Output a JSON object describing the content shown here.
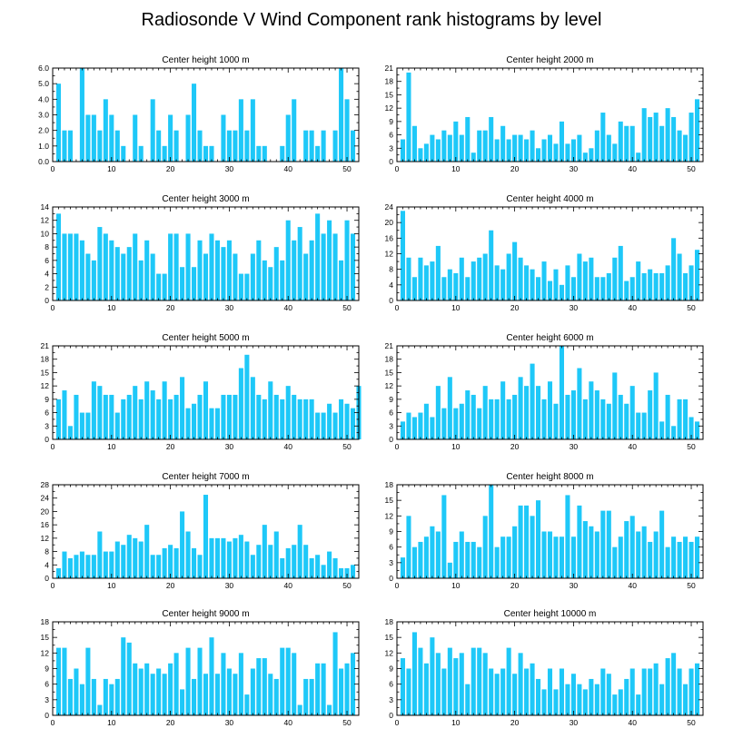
{
  "chart_data": {
    "title": "Radiosonde V Wind Component rank histograms by level",
    "type": "bar",
    "bar_color": "#1ec8f8",
    "x_range": [
      0,
      52
    ],
    "x_ticks": [
      0,
      10,
      20,
      30,
      40,
      50
    ],
    "panels": [
      {
        "title": "Center height 1000 m",
        "ylim": [
          0,
          6
        ],
        "yticks": [
          0,
          1,
          2,
          3,
          4,
          5,
          6
        ],
        "ytick_labels": [
          "0.0",
          "1.0",
          "2.0",
          "3.0",
          "4.0",
          "5.0",
          "6.0"
        ],
        "values": [
          5,
          2,
          2,
          0,
          6,
          3,
          3,
          2,
          4,
          3,
          2,
          1,
          0,
          3,
          1,
          0,
          4,
          2,
          1,
          3,
          2,
          0,
          3,
          5,
          2,
          1,
          1,
          0,
          3,
          2,
          2,
          4,
          2,
          4,
          1,
          1,
          0,
          0,
          1,
          3,
          4,
          0,
          2,
          2,
          1,
          2,
          0,
          2,
          6,
          4,
          2
        ]
      },
      {
        "title": "Center height 2000 m",
        "ylim": [
          0,
          21
        ],
        "yticks": [
          0,
          3,
          6,
          9,
          12,
          15,
          18,
          21
        ],
        "ytick_labels": [
          "0",
          "3",
          "6",
          "9",
          "12",
          "15",
          "18",
          "21"
        ],
        "values": [
          5,
          20,
          8,
          3,
          4,
          6,
          5,
          7,
          6,
          9,
          6,
          10,
          2,
          7,
          7,
          10,
          5,
          8,
          5,
          6,
          6,
          5,
          7,
          3,
          5,
          6,
          4,
          9,
          4,
          5,
          6,
          2,
          3,
          7,
          11,
          6,
          4,
          9,
          8,
          8,
          2,
          12,
          10,
          11,
          8,
          12,
          10,
          7,
          6,
          11,
          14
        ]
      },
      {
        "title": "Center height 3000 m",
        "ylim": [
          0,
          14
        ],
        "yticks": [
          0,
          2,
          4,
          6,
          8,
          10,
          12,
          14
        ],
        "ytick_labels": [
          "0",
          "2",
          "4",
          "6",
          "8",
          "10",
          "12",
          "14"
        ],
        "values": [
          13,
          10,
          10,
          10,
          9,
          7,
          6,
          11,
          10,
          9,
          8,
          7,
          8,
          10,
          6,
          9,
          7,
          4,
          4,
          10,
          10,
          5,
          10,
          5,
          9,
          7,
          10,
          9,
          8,
          9,
          7,
          4,
          4,
          7,
          9,
          6,
          5,
          8,
          6,
          12,
          9,
          11,
          7,
          9,
          13,
          10,
          12,
          10,
          6,
          12,
          10
        ]
      },
      {
        "title": "Center height 4000 m",
        "ylim": [
          0,
          24
        ],
        "yticks": [
          0,
          4,
          8,
          12,
          16,
          20,
          24
        ],
        "ytick_labels": [
          "0",
          "4",
          "8",
          "12",
          "16",
          "20",
          "24"
        ],
        "values": [
          23,
          11,
          6,
          11,
          9,
          10,
          14,
          6,
          8,
          7,
          11,
          6,
          10,
          11,
          12,
          18,
          9,
          8,
          12,
          15,
          11,
          9,
          8,
          6,
          10,
          5,
          8,
          4,
          9,
          6,
          12,
          10,
          11,
          6,
          6,
          7,
          11,
          14,
          5,
          6,
          10,
          7,
          8,
          7,
          7,
          9,
          16,
          12,
          7,
          9,
          13
        ]
      },
      {
        "title": "Center height 5000 m",
        "ylim": [
          0,
          21
        ],
        "yticks": [
          0,
          3,
          6,
          9,
          12,
          15,
          18,
          21
        ],
        "ytick_labels": [
          "0",
          "3",
          "6",
          "9",
          "12",
          "15",
          "18",
          "21"
        ],
        "values": [
          9,
          11,
          3,
          10,
          6,
          6,
          13,
          12,
          10,
          10,
          6,
          9,
          10,
          12,
          9,
          13,
          11,
          9,
          13,
          9,
          10,
          14,
          7,
          8,
          10,
          13,
          7,
          7,
          10,
          10,
          10,
          16,
          19,
          14,
          10,
          9,
          13,
          10,
          9,
          12,
          10,
          9,
          9,
          9,
          6,
          6,
          8,
          6,
          9,
          8,
          7,
          12
        ]
      },
      {
        "title": "Center height 6000 m",
        "ylim": [
          0,
          21
        ],
        "yticks": [
          0,
          3,
          6,
          9,
          12,
          15,
          18,
          21
        ],
        "ytick_labels": [
          "0",
          "3",
          "6",
          "9",
          "12",
          "15",
          "18",
          "21"
        ],
        "values": [
          4,
          6,
          5,
          6,
          8,
          5,
          12,
          7,
          14,
          7,
          8,
          11,
          10,
          7,
          12,
          9,
          9,
          13,
          9,
          10,
          14,
          12,
          17,
          12,
          9,
          13,
          8,
          21,
          10,
          11,
          16,
          9,
          13,
          11,
          9,
          8,
          15,
          10,
          8,
          12,
          6,
          6,
          11,
          15,
          4,
          10,
          3,
          9,
          9,
          5,
          4
        ]
      },
      {
        "title": "Center height 7000 m",
        "ylim": [
          0,
          28
        ],
        "yticks": [
          0,
          4,
          8,
          12,
          16,
          20,
          24,
          28
        ],
        "ytick_labels": [
          "0",
          "4",
          "8",
          "12",
          "16",
          "20",
          "24",
          "28"
        ],
        "values": [
          3,
          8,
          6,
          7,
          8,
          7,
          7,
          14,
          8,
          8,
          11,
          10,
          13,
          12,
          11,
          16,
          7,
          7,
          9,
          10,
          9,
          20,
          14,
          9,
          7,
          25,
          12,
          12,
          12,
          11,
          12,
          13,
          11,
          7,
          10,
          16,
          10,
          14,
          6,
          9,
          10,
          16,
          10,
          6,
          7,
          4,
          8,
          6,
          3,
          3,
          4
        ]
      },
      {
        "title": "Center height 8000 m",
        "ylim": [
          0,
          18
        ],
        "yticks": [
          0,
          3,
          6,
          9,
          12,
          15,
          18
        ],
        "ytick_labels": [
          "0",
          "3",
          "6",
          "9",
          "12",
          "15",
          "18"
        ],
        "values": [
          4,
          12,
          6,
          7,
          8,
          10,
          9,
          16,
          3,
          7,
          9,
          7,
          7,
          6,
          12,
          18,
          6,
          8,
          8,
          10,
          14,
          14,
          12,
          15,
          9,
          9,
          8,
          8,
          16,
          8,
          14,
          11,
          10,
          9,
          13,
          13,
          6,
          8,
          11,
          12,
          9,
          10,
          7,
          9,
          13,
          6,
          8,
          7,
          8,
          7,
          8
        ]
      },
      {
        "title": "Center height 9000 m",
        "ylim": [
          0,
          18
        ],
        "yticks": [
          0,
          3,
          6,
          9,
          12,
          15,
          18
        ],
        "ytick_labels": [
          "0",
          "3",
          "6",
          "9",
          "12",
          "15",
          "18"
        ],
        "values": [
          13,
          13,
          7,
          9,
          6,
          13,
          7,
          2,
          7,
          6,
          7,
          15,
          14,
          10,
          9,
          10,
          8,
          9,
          8,
          10,
          12,
          5,
          13,
          7,
          13,
          8,
          15,
          8,
          12,
          9,
          8,
          12,
          4,
          9,
          11,
          11,
          8,
          7,
          13,
          13,
          12,
          2,
          7,
          7,
          10,
          10,
          2,
          16,
          9,
          10,
          12
        ]
      },
      {
        "title": "Center height 10000 m",
        "ylim": [
          0,
          18
        ],
        "yticks": [
          0,
          3,
          6,
          9,
          12,
          15,
          18
        ],
        "ytick_labels": [
          "0",
          "3",
          "6",
          "9",
          "12",
          "15",
          "18"
        ],
        "values": [
          11,
          9,
          16,
          13,
          10,
          15,
          12,
          9,
          13,
          11,
          12,
          6,
          13,
          13,
          12,
          9,
          8,
          9,
          13,
          8,
          12,
          9,
          10,
          7,
          5,
          9,
          5,
          9,
          6,
          8,
          6,
          5,
          7,
          6,
          9,
          8,
          4,
          5,
          7,
          9,
          4,
          9,
          9,
          10,
          6,
          11,
          12,
          9,
          6,
          9,
          10
        ]
      }
    ]
  }
}
